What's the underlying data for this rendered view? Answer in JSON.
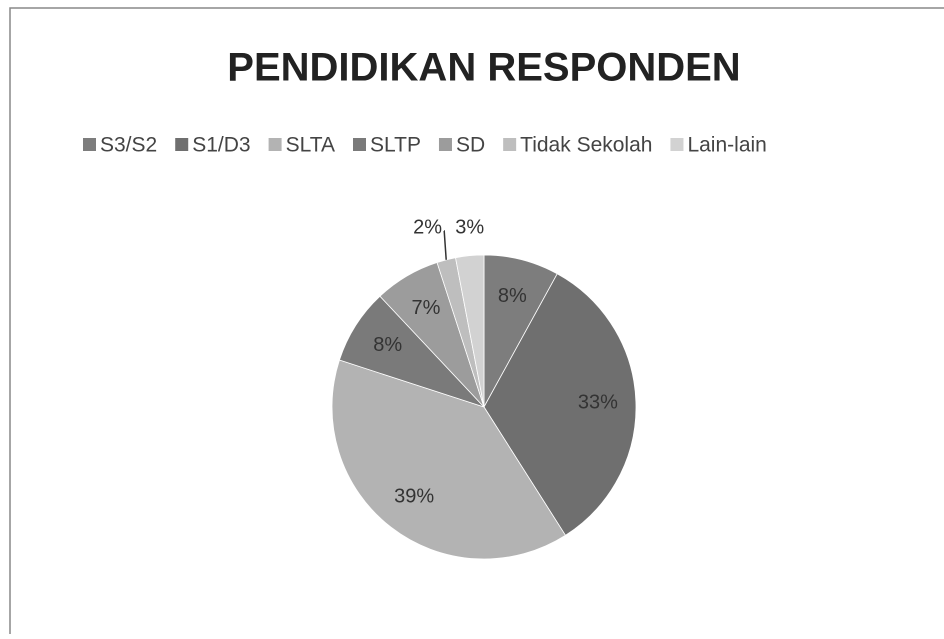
{
  "chart_data": {
    "type": "pie",
    "title": "PENDIDIKAN RESPONDEN",
    "categories": [
      "S3/S2",
      "S1/D3",
      "SLTA",
      "SLTP",
      "SD",
      "Tidak Sekolah",
      "Lain-lain"
    ],
    "values": [
      8,
      33,
      39,
      8,
      7,
      2,
      3
    ],
    "value_labels": [
      "8%",
      "33%",
      "39%",
      "8%",
      "7%",
      "2%",
      "3%"
    ],
    "colors": [
      "#7d7d7d",
      "#6f6f6f",
      "#b3b3b3",
      "#7a7a7a",
      "#9c9c9c",
      "#bebebe",
      "#d2d2d2"
    ],
    "legend": "top"
  }
}
